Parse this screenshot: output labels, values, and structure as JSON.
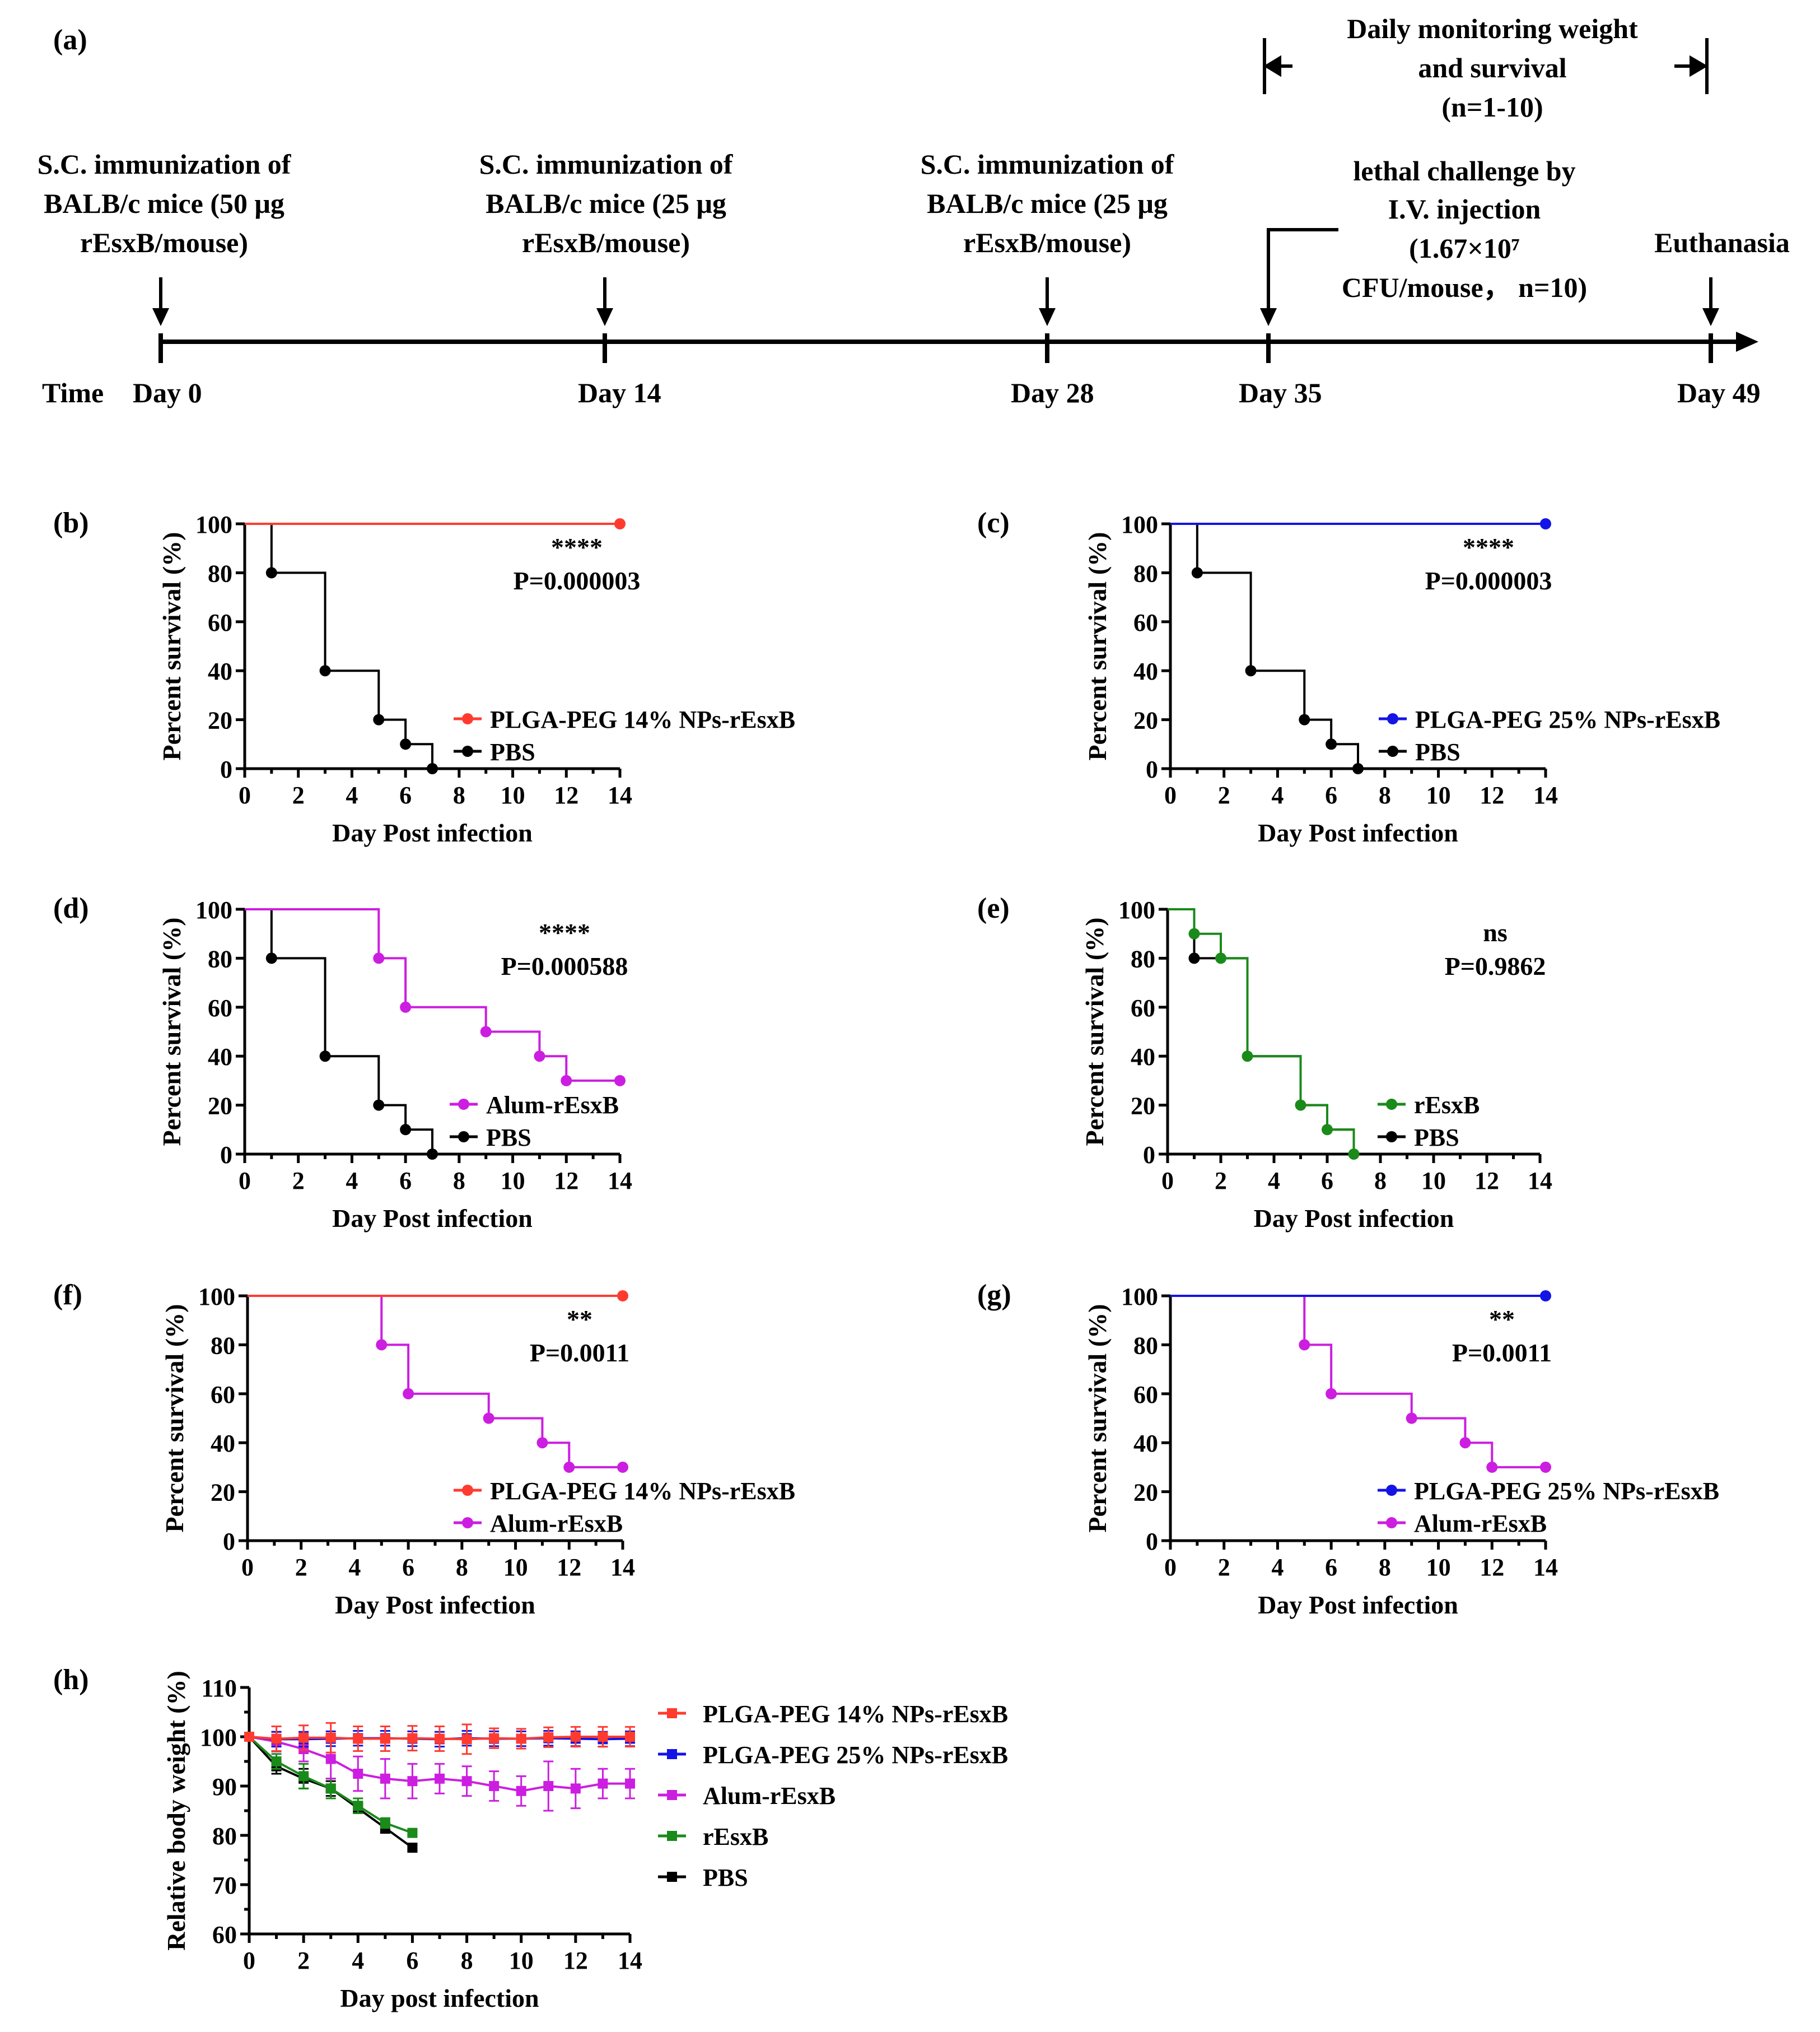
{
  "timeline": {
    "panel_label": "(a)",
    "time_label": "Time",
    "events": [
      {
        "day": "Day 0",
        "lines": [
          "S.C. immunization of",
          "BALB/c mice (50 μg",
          "rEsxB/mouse)"
        ]
      },
      {
        "day": "Day 14",
        "lines": [
          "S.C. immunization of",
          "BALB/c mice (25 μg",
          "rEsxB/mouse)"
        ]
      },
      {
        "day": "Day 28",
        "lines": [
          "S.C. immunization of",
          "BALB/c mice (25 μg",
          "rEsxB/mouse)"
        ]
      },
      {
        "day": "Day 35",
        "lines": [
          "lethal challenge by",
          "I.V. injection",
          "(1.67×10⁷",
          "CFU/mouse， n=10)"
        ]
      },
      {
        "day": "Day 49",
        "lines": [
          "Euthanasia"
        ]
      }
    ],
    "monitoring_lines": [
      "Daily monitoring weight",
      "and survival",
      "(n=1-10)"
    ]
  },
  "colors": {
    "plga14": "#ff3b30",
    "plga25": "#1414e6",
    "alum": "#cc1ee0",
    "resxb": "#1a8a1a",
    "pbs": "#000000"
  },
  "chart_data": [
    {
      "panel": "(b)",
      "type": "line",
      "title": "",
      "xlabel": "Day Post infection",
      "ylabel": "Percent survival (%)",
      "xlim": [
        0,
        14
      ],
      "ylim": [
        0,
        100
      ],
      "xticks": [
        "0",
        "2",
        "4",
        "6",
        "8",
        "10",
        "12",
        "14"
      ],
      "yticks": [
        "0",
        "20",
        "40",
        "60",
        "80",
        "100"
      ],
      "stars": "****",
      "pvalue": "P=0.000003",
      "series": [
        {
          "name": "PLGA-PEG 14% NPs-rEsxB",
          "color_key": "plga14",
          "x": [
            0,
            14
          ],
          "y": [
            100,
            100
          ],
          "markers": [
            [
              14,
              100
            ]
          ]
        },
        {
          "name": "PBS",
          "color_key": "pbs",
          "x": [
            0,
            1,
            3,
            5,
            6,
            7
          ],
          "y": [
            100,
            80,
            40,
            20,
            10,
            0
          ],
          "markers": [
            [
              1,
              80
            ],
            [
              3,
              40
            ],
            [
              5,
              20
            ],
            [
              6,
              10
            ],
            [
              7,
              0
            ]
          ]
        }
      ]
    },
    {
      "panel": "(c)",
      "type": "line",
      "title": "",
      "xlabel": "Day Post infection",
      "ylabel": "Percent survival (%)",
      "xlim": [
        0,
        14
      ],
      "ylim": [
        0,
        100
      ],
      "xticks": [
        "0",
        "2",
        "4",
        "6",
        "8",
        "10",
        "12",
        "14"
      ],
      "yticks": [
        "0",
        "20",
        "40",
        "60",
        "80",
        "100"
      ],
      "stars": "****",
      "pvalue": "P=0.000003",
      "series": [
        {
          "name": "PLGA-PEG 25% NPs-rEsxB",
          "color_key": "plga25",
          "x": [
            0,
            14
          ],
          "y": [
            100,
            100
          ],
          "markers": [
            [
              14,
              100
            ]
          ]
        },
        {
          "name": "PBS",
          "color_key": "pbs",
          "x": [
            0,
            1,
            3,
            5,
            6,
            7
          ],
          "y": [
            100,
            80,
            40,
            20,
            10,
            0
          ],
          "markers": [
            [
              1,
              80
            ],
            [
              3,
              40
            ],
            [
              5,
              20
            ],
            [
              6,
              10
            ],
            [
              7,
              0
            ]
          ]
        }
      ]
    },
    {
      "panel": "(d)",
      "type": "line",
      "title": "",
      "xlabel": "Day Post infection",
      "ylabel": "Percent survival (%)",
      "xlim": [
        0,
        14
      ],
      "ylim": [
        0,
        100
      ],
      "xticks": [
        "0",
        "2",
        "4",
        "6",
        "8",
        "10",
        "12",
        "14"
      ],
      "yticks": [
        "0",
        "20",
        "40",
        "60",
        "80",
        "100"
      ],
      "stars": "****",
      "pvalue": "P=0.000588",
      "series": [
        {
          "name": "Alum-rEsxB",
          "color_key": "alum",
          "x": [
            0,
            5,
            6,
            9,
            11,
            12,
            14
          ],
          "y": [
            100,
            80,
            60,
            50,
            40,
            30,
            30
          ],
          "markers": [
            [
              5,
              80
            ],
            [
              6,
              60
            ],
            [
              9,
              50
            ],
            [
              11,
              40
            ],
            [
              12,
              30
            ],
            [
              14,
              30
            ]
          ]
        },
        {
          "name": "PBS",
          "color_key": "pbs",
          "x": [
            0,
            1,
            3,
            5,
            6,
            7
          ],
          "y": [
            100,
            80,
            40,
            20,
            10,
            0
          ],
          "markers": [
            [
              1,
              80
            ],
            [
              3,
              40
            ],
            [
              5,
              20
            ],
            [
              6,
              10
            ],
            [
              7,
              0
            ]
          ]
        }
      ]
    },
    {
      "panel": "(e)",
      "type": "line",
      "title": "",
      "xlabel": "Day Post infection",
      "ylabel": "Percent survival (%)",
      "xlim": [
        0,
        14
      ],
      "ylim": [
        0,
        100
      ],
      "xticks": [
        "0",
        "2",
        "4",
        "6",
        "8",
        "10",
        "12",
        "14"
      ],
      "yticks": [
        "0",
        "20",
        "40",
        "60",
        "80",
        "100"
      ],
      "stars": "ns",
      "pvalue": "P=0.9862",
      "series": [
        {
          "name": "rEsxB",
          "color_key": "resxb",
          "x": [
            0,
            1,
            2,
            3,
            5,
            6,
            7
          ],
          "y": [
            100,
            90,
            80,
            40,
            20,
            10,
            0
          ],
          "markers": [
            [
              1,
              90
            ],
            [
              2,
              80
            ],
            [
              3,
              40
            ],
            [
              5,
              20
            ],
            [
              6,
              10
            ],
            [
              7,
              0
            ]
          ]
        },
        {
          "name": "PBS",
          "color_key": "pbs",
          "x": [
            0,
            1,
            3,
            5,
            6,
            7
          ],
          "y": [
            100,
            80,
            40,
            20,
            10,
            0
          ],
          "markers": [
            [
              1,
              80
            ]
          ]
        }
      ]
    },
    {
      "panel": "(f)",
      "type": "line",
      "title": "",
      "xlabel": "Day Post infection",
      "ylabel": "Percent survival (%)",
      "xlim": [
        0,
        14
      ],
      "ylim": [
        0,
        100
      ],
      "xticks": [
        "0",
        "2",
        "4",
        "6",
        "8",
        "10",
        "12",
        "14"
      ],
      "yticks": [
        "0",
        "20",
        "40",
        "60",
        "80",
        "100"
      ],
      "stars": "**",
      "pvalue": "P=0.0011",
      "series": [
        {
          "name": "PLGA-PEG 14% NPs-rEsxB",
          "color_key": "plga14",
          "x": [
            0,
            14
          ],
          "y": [
            100,
            100
          ],
          "markers": [
            [
              14,
              100
            ]
          ]
        },
        {
          "name": "Alum-rEsxB",
          "color_key": "alum",
          "x": [
            0,
            5,
            6,
            9,
            11,
            12,
            14
          ],
          "y": [
            100,
            80,
            60,
            50,
            40,
            30,
            30
          ],
          "markers": [
            [
              5,
              80
            ],
            [
              6,
              60
            ],
            [
              9,
              50
            ],
            [
              11,
              40
            ],
            [
              12,
              30
            ],
            [
              14,
              30
            ]
          ]
        }
      ]
    },
    {
      "panel": "(g)",
      "type": "line",
      "title": "",
      "xlabel": "Day Post infection",
      "ylabel": "Percent survival (%)",
      "xlim": [
        0,
        14
      ],
      "ylim": [
        0,
        100
      ],
      "xticks": [
        "0",
        "2",
        "4",
        "6",
        "8",
        "10",
        "12",
        "14"
      ],
      "yticks": [
        "0",
        "20",
        "40",
        "60",
        "80",
        "100"
      ],
      "stars": "**",
      "pvalue": "P=0.0011",
      "series": [
        {
          "name": "PLGA-PEG 25% NPs-rEsxB",
          "color_key": "plga25",
          "x": [
            0,
            14
          ],
          "y": [
            100,
            100
          ],
          "markers": [
            [
              14,
              100
            ]
          ]
        },
        {
          "name": "Alum-rEsxB",
          "color_key": "alum",
          "x": [
            0,
            5,
            6,
            9,
            11,
            12,
            14
          ],
          "y": [
            100,
            80,
            60,
            50,
            40,
            30,
            30
          ],
          "markers": [
            [
              5,
              80
            ],
            [
              6,
              60
            ],
            [
              9,
              50
            ],
            [
              11,
              40
            ],
            [
              12,
              30
            ],
            [
              14,
              30
            ]
          ]
        }
      ]
    },
    {
      "panel": "(h)",
      "type": "line",
      "title": "",
      "xlabel": "Day post infection",
      "ylabel": "Relative body weight (%)",
      "xlim": [
        0,
        14
      ],
      "ylim": [
        60,
        110
      ],
      "xticks": [
        "0",
        "2",
        "4",
        "6",
        "8",
        "10",
        "12",
        "14"
      ],
      "yticks": [
        "60",
        "70",
        "80",
        "90",
        "100",
        "110"
      ],
      "series": [
        {
          "name": "PLGA-PEG 14% NPs-rEsxB",
          "color_key": "plga14",
          "x": [
            0,
            1,
            2,
            3,
            4,
            5,
            6,
            7,
            8,
            9,
            10,
            11,
            12,
            13,
            14
          ],
          "y": [
            100,
            99.6,
            99.8,
            99.8,
            99.6,
            99.6,
            99.7,
            99.6,
            99.5,
            99.7,
            99.6,
            99.9,
            100,
            100,
            100
          ],
          "err": [
            0.5,
            2.5,
            2.5,
            3,
            2.5,
            2.5,
            2.5,
            2.5,
            3,
            2,
            2,
            2,
            2,
            2,
            2
          ]
        },
        {
          "name": "PLGA-PEG 25% NPs-rEsxB",
          "color_key": "plga25",
          "x": [
            0,
            1,
            2,
            3,
            4,
            5,
            6,
            7,
            8,
            9,
            10,
            11,
            12,
            13,
            14
          ],
          "y": [
            100,
            99.5,
            99.5,
            99.6,
            99.7,
            99.7,
            99.6,
            99.5,
            99.7,
            99.6,
            99.6,
            99.7,
            99.6,
            99.5,
            99.6
          ],
          "err": [
            0.5,
            1.5,
            1.5,
            1.5,
            1.5,
            1.5,
            1.5,
            1.5,
            1.5,
            1.5,
            1.5,
            1.5,
            1.5,
            1.5,
            1.5
          ]
        },
        {
          "name": "Alum-rEsxB",
          "color_key": "alum",
          "x": [
            0,
            1,
            2,
            3,
            4,
            5,
            6,
            7,
            8,
            9,
            10,
            11,
            12,
            13,
            14
          ],
          "y": [
            100,
            99,
            97.5,
            95.5,
            92.5,
            91.5,
            91,
            91.5,
            91,
            90,
            89,
            90,
            89.5,
            90.5,
            90.5
          ],
          "err": [
            0.5,
            2,
            2.5,
            4,
            3.5,
            4,
            3.5,
            3,
            3,
            3,
            3,
            5,
            4,
            3,
            3
          ]
        },
        {
          "name": "rEsxB",
          "color_key": "resxb",
          "x": [
            0,
            1,
            2,
            3,
            4,
            5,
            6
          ],
          "y": [
            100,
            95,
            92,
            89.5,
            86,
            82.5,
            80.5
          ],
          "err": [
            0.5,
            1.5,
            2.5,
            2,
            1.5,
            1,
            0.5
          ]
        },
        {
          "name": "PBS",
          "color_key": "pbs",
          "x": [
            0,
            1,
            2,
            3,
            4,
            5,
            6
          ],
          "y": [
            100,
            94,
            91.5,
            89.5,
            85.5,
            81.5,
            77.5
          ],
          "err": [
            0.5,
            1.5,
            2,
            1.5,
            1,
            1,
            0.5
          ]
        }
      ]
    }
  ]
}
